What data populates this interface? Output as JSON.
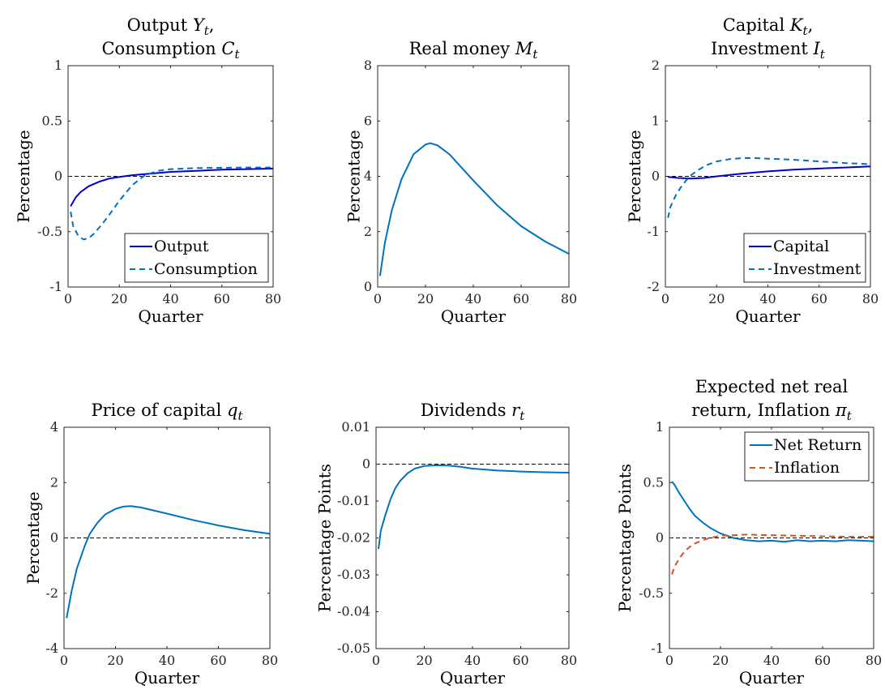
{
  "colors": {
    "solid_blue": "#0000cc",
    "matlab_blue": "#0072bd",
    "matlab_orange": "#d95319",
    "zero_line": "#000000"
  },
  "chart_data": [
    {
      "type": "line",
      "title_lines": [
        [
          "Output ",
          "Y",
          "t",
          ","
        ],
        [
          "Consumption ",
          "C",
          "t",
          ""
        ]
      ],
      "xlabel": "Quarter",
      "ylabel": "Percentage",
      "xlim": [
        0,
        80
      ],
      "ylim": [
        -1,
        1
      ],
      "xticks": [
        0,
        20,
        40,
        60,
        80
      ],
      "yticks": [
        -1,
        -0.5,
        0,
        0.5,
        1
      ],
      "ytick_labels": [
        "-1",
        "-0.5",
        "0",
        "0.5",
        "1"
      ],
      "zero_line": true,
      "legend": "bottom-right",
      "series": [
        {
          "name": "Output",
          "color": "#0000cc",
          "dash": "solid",
          "x": [
            1,
            3,
            5,
            8,
            12,
            16,
            20,
            25,
            30,
            35,
            40,
            50,
            60,
            70,
            80
          ],
          "y": [
            -0.27,
            -0.19,
            -0.14,
            -0.09,
            -0.05,
            -0.02,
            -0.005,
            0.01,
            0.02,
            0.03,
            0.04,
            0.05,
            0.06,
            0.065,
            0.07
          ]
        },
        {
          "name": "Consumption",
          "color": "#0072bd",
          "dash": "dashed",
          "x": [
            1,
            2,
            4,
            6,
            8,
            10,
            13,
            16,
            20,
            25,
            30,
            35,
            40,
            50,
            60,
            70,
            80
          ],
          "y": [
            -0.32,
            -0.45,
            -0.54,
            -0.57,
            -0.56,
            -0.52,
            -0.44,
            -0.35,
            -0.22,
            -0.08,
            0.01,
            0.05,
            0.065,
            0.075,
            0.078,
            0.08,
            0.08
          ]
        }
      ]
    },
    {
      "type": "line",
      "title_lines": [
        [
          "Real money ",
          "M",
          "t",
          ""
        ]
      ],
      "xlabel": "Quarter",
      "ylabel": "Percentage",
      "xlim": [
        0,
        80
      ],
      "ylim": [
        0,
        8
      ],
      "xticks": [
        0,
        20,
        40,
        60,
        80
      ],
      "yticks": [
        0,
        2,
        4,
        6,
        8
      ],
      "ytick_labels": [
        "0",
        "2",
        "4",
        "6",
        "8"
      ],
      "zero_line": true,
      "legend": "none",
      "series": [
        {
          "color": "#0072bd",
          "dash": "solid",
          "x": [
            1,
            3,
            6,
            10,
            15,
            20,
            22,
            25,
            30,
            40,
            50,
            60,
            70,
            80
          ],
          "y": [
            0.4,
            1.6,
            2.8,
            3.9,
            4.8,
            5.15,
            5.2,
            5.12,
            4.8,
            3.85,
            2.95,
            2.2,
            1.65,
            1.2
          ]
        }
      ]
    },
    {
      "type": "line",
      "title_lines": [
        [
          "Capital ",
          "K",
          "t",
          ","
        ],
        [
          "Investment ",
          "I",
          "t",
          ""
        ]
      ],
      "xlabel": "Quarter",
      "ylabel": "Percentage",
      "xlim": [
        0,
        80
      ],
      "ylim": [
        -2,
        2
      ],
      "xticks": [
        0,
        20,
        40,
        60,
        80
      ],
      "yticks": [
        -2,
        -1,
        0,
        1,
        2
      ],
      "ytick_labels": [
        "-2",
        "-1",
        "0",
        "1",
        "2"
      ],
      "zero_line": true,
      "legend": "bottom-right",
      "series": [
        {
          "name": "Capital",
          "color": "#0000cc",
          "dash": "solid",
          "x": [
            1,
            5,
            10,
            15,
            20,
            30,
            40,
            50,
            60,
            70,
            80
          ],
          "y": [
            -0.01,
            -0.03,
            -0.04,
            -0.03,
            0.0,
            0.05,
            0.09,
            0.12,
            0.14,
            0.16,
            0.18
          ]
        },
        {
          "name": "Investment",
          "color": "#0072bd",
          "dash": "dashed",
          "x": [
            1,
            2,
            4,
            6,
            8,
            10,
            13,
            16,
            20,
            25,
            30,
            35,
            40,
            50,
            60,
            70,
            80
          ],
          "y": [
            -0.75,
            -0.55,
            -0.35,
            -0.2,
            -0.08,
            0.02,
            0.12,
            0.2,
            0.27,
            0.31,
            0.33,
            0.33,
            0.32,
            0.3,
            0.27,
            0.24,
            0.22
          ]
        }
      ]
    },
    {
      "type": "line",
      "title_lines": [
        [
          "Price of capital ",
          "q",
          "t",
          ""
        ]
      ],
      "xlabel": "Quarter",
      "ylabel": "Percentage",
      "xlim": [
        0,
        80
      ],
      "ylim": [
        -4,
        4
      ],
      "xticks": [
        0,
        20,
        40,
        60,
        80
      ],
      "yticks": [
        -4,
        -2,
        0,
        2,
        4
      ],
      "ytick_labels": [
        "-4",
        "-2",
        "0",
        "2",
        "4"
      ],
      "zero_line": true,
      "legend": "none",
      "series": [
        {
          "color": "#0072bd",
          "dash": "solid",
          "x": [
            1,
            3,
            5,
            8,
            10,
            13,
            16,
            20,
            23,
            26,
            30,
            40,
            50,
            60,
            70,
            80
          ],
          "y": [
            -2.9,
            -1.9,
            -1.1,
            -0.3,
            0.15,
            0.55,
            0.85,
            1.05,
            1.13,
            1.15,
            1.1,
            0.88,
            0.65,
            0.45,
            0.28,
            0.15
          ]
        }
      ]
    },
    {
      "type": "line",
      "title_lines": [
        [
          "Dividends ",
          "r",
          "t",
          ""
        ]
      ],
      "xlabel": "Quarter",
      "ylabel": "Percentage Points",
      "xlim": [
        0,
        80
      ],
      "ylim": [
        -0.05,
        0.01
      ],
      "xticks": [
        0,
        20,
        40,
        60,
        80
      ],
      "yticks": [
        -0.05,
        -0.04,
        -0.03,
        -0.02,
        -0.01,
        0,
        0.01
      ],
      "ytick_labels": [
        "-0.05",
        "-0.04",
        "-0.03",
        "-0.02",
        "-0.01",
        "0",
        "0.01"
      ],
      "zero_line": true,
      "legend": "none",
      "series": [
        {
          "color": "#0072bd",
          "dash": "solid",
          "x": [
            1,
            2,
            4,
            6,
            8,
            10,
            13,
            16,
            20,
            25,
            30,
            35,
            40,
            50,
            60,
            70,
            80
          ],
          "y": [
            -0.023,
            -0.018,
            -0.0135,
            -0.0095,
            -0.0065,
            -0.0045,
            -0.0025,
            -0.0012,
            -0.0005,
            -0.0003,
            -0.0004,
            -0.0007,
            -0.0012,
            -0.0017,
            -0.002,
            -0.0022,
            -0.0023
          ]
        }
      ]
    },
    {
      "type": "line",
      "title_lines": [
        [
          "Expected net real",
          "",
          "",
          ""
        ],
        [
          "return, Inflation ",
          "π",
          "t",
          ""
        ]
      ],
      "xlabel": "Quarter",
      "ylabel": "Percentage Points",
      "xlim": [
        0,
        80
      ],
      "ylim": [
        -1,
        1
      ],
      "xticks": [
        0,
        20,
        40,
        60,
        80
      ],
      "yticks": [
        -1,
        -0.5,
        0,
        0.5,
        1
      ],
      "ytick_labels": [
        "-1",
        "-0.5",
        "0",
        "0.5",
        "1"
      ],
      "zero_line": true,
      "legend": "top-right",
      "series": [
        {
          "name": "Net Return",
          "color": "#0072bd",
          "dash": "solid",
          "x": [
            1,
            2,
            4,
            6,
            8,
            10,
            13,
            16,
            20,
            25,
            30,
            35,
            40,
            45,
            50,
            55,
            60,
            65,
            70,
            75,
            80
          ],
          "y": [
            0.51,
            0.48,
            0.4,
            0.33,
            0.26,
            0.2,
            0.14,
            0.09,
            0.04,
            0.0,
            -0.02,
            -0.03,
            -0.025,
            -0.035,
            -0.02,
            -0.03,
            -0.025,
            -0.03,
            -0.02,
            -0.025,
            -0.03
          ]
        },
        {
          "name": "Inflation",
          "color": "#d95319",
          "dash": "dashed",
          "x": [
            1,
            2,
            4,
            6,
            8,
            10,
            13,
            16,
            20,
            25,
            30,
            40,
            50,
            60,
            70,
            80
          ],
          "y": [
            -0.33,
            -0.26,
            -0.18,
            -0.12,
            -0.08,
            -0.05,
            -0.02,
            0.0,
            0.02,
            0.025,
            0.03,
            0.025,
            0.02,
            0.015,
            0.01,
            0.01
          ]
        }
      ]
    }
  ]
}
